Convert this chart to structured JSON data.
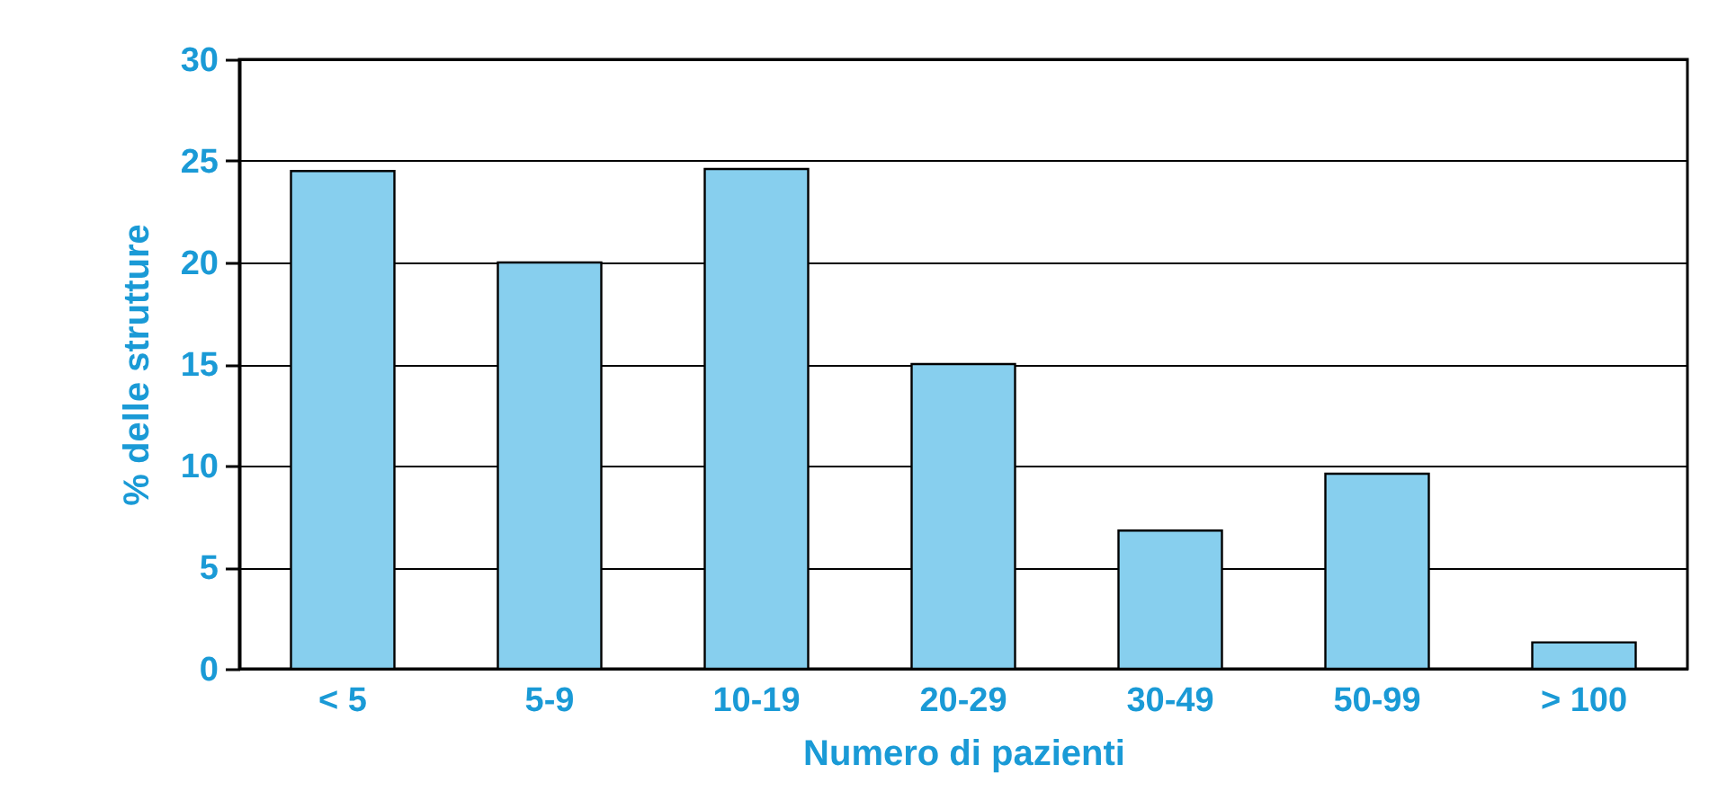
{
  "chart_data": {
    "type": "bar",
    "xlabel": "Numero di pazienti",
    "ylabel": "% delle strutture",
    "categories": [
      "< 5",
      "5-9",
      "10-19",
      "20-29",
      "30-49",
      "50-99",
      "> 100"
    ],
    "values": [
      24.5,
      20,
      24.6,
      15,
      6.8,
      9.6,
      1.3
    ],
    "color": "#87cfee",
    "ylim": [
      0,
      30
    ],
    "yticks": [
      0,
      5,
      10,
      15,
      20,
      25,
      30
    ],
    "grid": "y"
  }
}
